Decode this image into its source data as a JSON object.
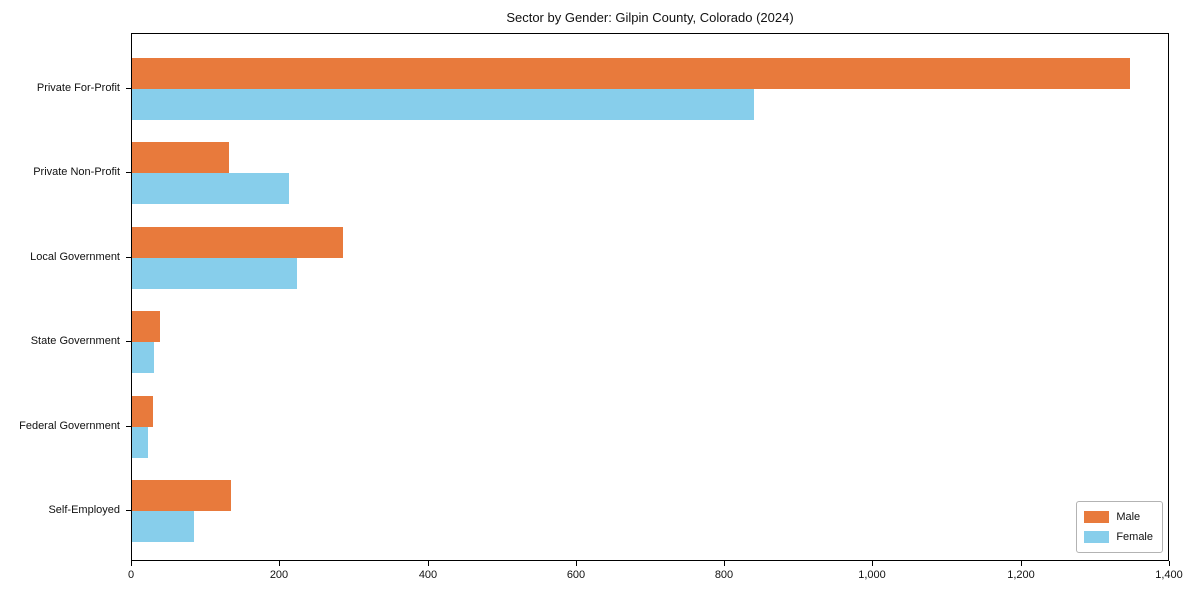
{
  "chart_data": {
    "type": "bar",
    "orientation": "horizontal",
    "title": "Sector by Gender: Gilpin County, Colorado (2024)",
    "categories": [
      "Private For-Profit",
      "Private Non-Profit",
      "Local Government",
      "State Government",
      "Federal Government",
      "Self-Employed"
    ],
    "series": [
      {
        "name": "Male",
        "color": "#E87A3C",
        "values": [
          1346,
          131,
          285,
          38,
          28,
          134
        ]
      },
      {
        "name": "Female",
        "color": "#87CEEB",
        "values": [
          839,
          212,
          222,
          30,
          21,
          84
        ]
      }
    ],
    "xlabel": "",
    "ylabel": "",
    "xlim": [
      0,
      1400
    ],
    "xticks": [
      0,
      200,
      400,
      600,
      800,
      1000,
      1200,
      1400
    ],
    "xtick_labels": [
      "0",
      "200",
      "400",
      "600",
      "800",
      "1,000",
      "1,200",
      "1,400"
    ],
    "grid": false,
    "legend_position": "lower right",
    "axis_color": "#000000",
    "background_color": "#ffffff"
  }
}
